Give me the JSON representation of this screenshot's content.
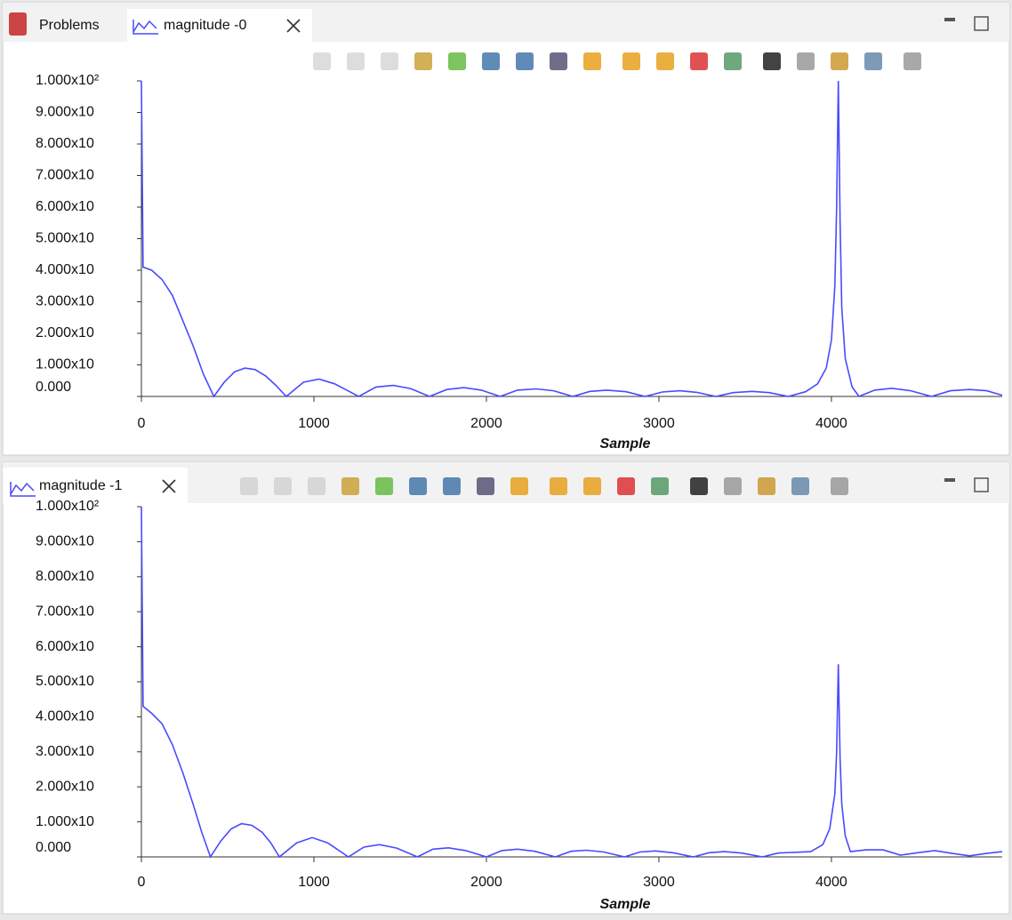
{
  "tabs": [
    {
      "label": "Problems"
    },
    {
      "label": "magnitude -0"
    },
    {
      "label": "magnitude -1"
    }
  ],
  "chart_data": [
    {
      "type": "line",
      "xlabel": "Sample",
      "color": "#4a4aff",
      "xlim": [
        0,
        4990
      ],
      "xticks": [
        0,
        1000,
        2000,
        3000,
        4000
      ],
      "ylim": [
        0,
        100
      ],
      "yticks": [
        {
          "value": 0,
          "label": "0.000"
        },
        {
          "value": 10,
          "label": "1.000x10"
        },
        {
          "value": 20,
          "label": "2.000x10"
        },
        {
          "value": 30,
          "label": "3.000x10"
        },
        {
          "value": 40,
          "label": "4.000x10"
        },
        {
          "value": 50,
          "label": "5.000x10"
        },
        {
          "value": 60,
          "label": "6.000x10"
        },
        {
          "value": 70,
          "label": "7.000x10"
        },
        {
          "value": 80,
          "label": "8.000x10"
        },
        {
          "value": 90,
          "label": "9.000x10"
        },
        {
          "value": 100,
          "label": "1.000x10²"
        }
      ],
      "x": [
        0,
        10,
        60,
        120,
        180,
        240,
        300,
        360,
        420,
        480,
        540,
        600,
        660,
        720,
        780,
        840,
        940,
        1030,
        1120,
        1260,
        1360,
        1460,
        1560,
        1670,
        1770,
        1870,
        1970,
        2080,
        2180,
        2290,
        2390,
        2500,
        2600,
        2700,
        2810,
        2920,
        3020,
        3120,
        3220,
        3330,
        3430,
        3540,
        3640,
        3750,
        3850,
        3920,
        3970,
        4000,
        4020,
        4030,
        4040,
        4050,
        4060,
        4080,
        4120,
        4160,
        4250,
        4350,
        4460,
        4580,
        4690,
        4800,
        4900,
        4990
      ],
      "series": [
        {
          "values": [
            100,
            41,
            40,
            37,
            32,
            24,
            16,
            7,
            0,
            4.5,
            7.8,
            9,
            8.5,
            6.5,
            3.5,
            0,
            4.5,
            5.5,
            4,
            0,
            3,
            3.5,
            2.5,
            0,
            2.2,
            2.8,
            2,
            0,
            2,
            2.4,
            1.8,
            0,
            1.6,
            2,
            1.5,
            0,
            1.4,
            1.8,
            1.3,
            0,
            1.2,
            1.6,
            1.2,
            0,
            1.5,
            4,
            9,
            18,
            35,
            60,
            100,
            55,
            28,
            12,
            3,
            0,
            2,
            2.6,
            1.8,
            0,
            1.8,
            2.2,
            1.8,
            0.4
          ]
        }
      ]
    },
    {
      "type": "line",
      "xlabel": "Sample",
      "color": "#4a4aff",
      "xlim": [
        0,
        4990
      ],
      "xticks": [
        0,
        1000,
        2000,
        3000,
        4000
      ],
      "ylim": [
        0,
        100
      ],
      "yticks": [
        {
          "value": 0,
          "label": "0.000"
        },
        {
          "value": 10,
          "label": "1.000x10"
        },
        {
          "value": 20,
          "label": "2.000x10"
        },
        {
          "value": 30,
          "label": "3.000x10"
        },
        {
          "value": 40,
          "label": "4.000x10"
        },
        {
          "value": 50,
          "label": "5.000x10"
        },
        {
          "value": 60,
          "label": "6.000x10"
        },
        {
          "value": 70,
          "label": "7.000x10"
        },
        {
          "value": 80,
          "label": "8.000x10"
        },
        {
          "value": 90,
          "label": "9.000x10"
        },
        {
          "value": 100,
          "label": "1.000x10²"
        }
      ],
      "x": [
        0,
        10,
        60,
        120,
        180,
        240,
        300,
        350,
        400,
        460,
        520,
        580,
        640,
        700,
        750,
        800,
        900,
        990,
        1080,
        1200,
        1290,
        1380,
        1480,
        1600,
        1690,
        1780,
        1880,
        2000,
        2090,
        2180,
        2280,
        2400,
        2490,
        2580,
        2680,
        2800,
        2890,
        2980,
        3080,
        3200,
        3290,
        3380,
        3480,
        3600,
        3690,
        3780,
        3880,
        3950,
        3990,
        4020,
        4030,
        4040,
        4050,
        4060,
        4080,
        4110,
        4200,
        4300,
        4400,
        4500,
        4600,
        4700,
        4800,
        4900,
        4990
      ],
      "series": [
        {
          "values": [
            100,
            43,
            41,
            38,
            32,
            24,
            15,
            7,
            0,
            4.5,
            8,
            9.5,
            9,
            7,
            4,
            0,
            4,
            5.5,
            4,
            0,
            2.8,
            3.5,
            2.5,
            0,
            2.2,
            2.6,
            1.8,
            0,
            1.8,
            2.2,
            1.6,
            0,
            1.6,
            1.9,
            1.4,
            0,
            1.4,
            1.7,
            1.2,
            0,
            1.2,
            1.5,
            1.1,
            0,
            1.1,
            1.3,
            1.5,
            3.5,
            8,
            18,
            30,
            55,
            28,
            15,
            6,
            1.5,
            2,
            2,
            0.5,
            1.2,
            1.8,
            1,
            0.3,
            1,
            1.5
          ]
        }
      ]
    }
  ]
}
